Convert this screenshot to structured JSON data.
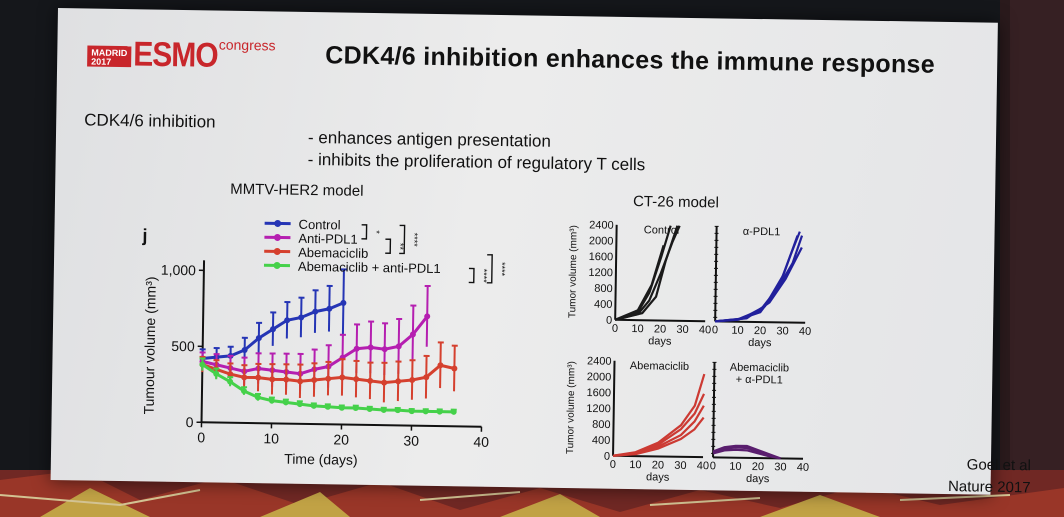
{
  "slide": {
    "logo": {
      "city_line1": "MADRID",
      "city_line2": "2017",
      "brand": "ESMO",
      "suffix": "congress"
    },
    "title": "CDK4/6 inhibition enhances the immune response",
    "lead": "CDK4/6 inhibition",
    "bullets": [
      "- enhances antigen presentation",
      "- inhibits the proliferation of regulatory T  cells"
    ],
    "model_left": "MMTV-HER2 model",
    "model_right": "CT-26 model",
    "citation_line1": "Goel et al",
    "citation_line2": "Nature 2017"
  },
  "chart_data": [
    {
      "type": "line",
      "panel_label": "j",
      "xlabel": "Time (days)",
      "ylabel": "Tumour volume (mm³)",
      "xlim": [
        0,
        40
      ],
      "ylim": [
        0,
        1000
      ],
      "xticks": [
        "0",
        "10",
        "20",
        "30",
        "40"
      ],
      "yticks": [
        {
          "v": 0,
          "label": "0"
        },
        {
          "v": 500,
          "label": "500"
        },
        {
          "v": 1000,
          "label": "1,000"
        }
      ],
      "significance": [
        "*",
        "**",
        "****",
        "****",
        "****"
      ],
      "series": [
        {
          "name": "Control",
          "color": "#2535b5",
          "x": [
            0,
            2,
            4,
            6,
            8,
            10,
            12,
            14,
            16,
            18,
            20
          ],
          "y": [
            420,
            430,
            440,
            480,
            560,
            620,
            680,
            700,
            740,
            760,
            800
          ],
          "err": [
            60,
            60,
            60,
            80,
            100,
            110,
            120,
            130,
            140,
            150,
            220
          ]
        },
        {
          "name": "Anti-PDL1",
          "color": "#b51fb0",
          "x": [
            0,
            2,
            4,
            6,
            8,
            10,
            12,
            14,
            16,
            18,
            20,
            22,
            24,
            26,
            28,
            30,
            32
          ],
          "y": [
            400,
            380,
            360,
            340,
            360,
            350,
            340,
            330,
            360,
            380,
            440,
            500,
            510,
            500,
            520,
            600,
            720
          ],
          "err": [
            60,
            70,
            80,
            90,
            100,
            110,
            120,
            130,
            130,
            140,
            150,
            160,
            170,
            170,
            180,
            190,
            200
          ]
        },
        {
          "name": "Abemaciclib",
          "color": "#d5402e",
          "x": [
            0,
            2,
            4,
            6,
            8,
            10,
            12,
            14,
            16,
            18,
            20,
            22,
            24,
            26,
            28,
            30,
            32,
            34,
            36
          ],
          "y": [
            380,
            350,
            320,
            300,
            300,
            290,
            290,
            280,
            290,
            300,
            310,
            300,
            290,
            280,
            290,
            300,
            320,
            400,
            380
          ],
          "err": [
            50,
            60,
            70,
            80,
            90,
            100,
            100,
            110,
            110,
            110,
            120,
            120,
            120,
            130,
            130,
            130,
            140,
            150,
            150
          ]
        },
        {
          "name": "Abemaciclib + anti-PDL1",
          "color": "#45d14a",
          "x": [
            0,
            2,
            4,
            6,
            8,
            10,
            12,
            14,
            16,
            18,
            20,
            22,
            24,
            26,
            28,
            30,
            32,
            34,
            36
          ],
          "y": [
            380,
            320,
            270,
            210,
            170,
            150,
            140,
            130,
            120,
            115,
            110,
            110,
            105,
            100,
            100,
            95,
            95,
            95,
            95
          ],
          "err": [
            40,
            35,
            30,
            25,
            22,
            20,
            18,
            18,
            16,
            16,
            15,
            15,
            14,
            14,
            14,
            14,
            14,
            14,
            14
          ]
        }
      ]
    },
    {
      "type": "line",
      "panels": [
        {
          "title": "Control",
          "color": "#1a1a1a",
          "lines": [
            {
              "x": [
                0,
                10,
                15,
                20,
                25,
                28
              ],
              "y": [
                0,
                150,
                500,
                1200,
                2000,
                2400
              ]
            },
            {
              "x": [
                0,
                10,
                15,
                20,
                24
              ],
              "y": [
                0,
                200,
                700,
                1600,
                2400
              ]
            },
            {
              "x": [
                0,
                12,
                18,
                22,
                27
              ],
              "y": [
                0,
                180,
                600,
                1500,
                2400
              ]
            },
            {
              "x": [
                0,
                10,
                16,
                21
              ],
              "y": [
                0,
                250,
                900,
                1900
              ]
            }
          ]
        },
        {
          "title": "α-PDL1",
          "color": "#22209c",
          "lines": [
            {
              "x": [
                0,
                10,
                20,
                28,
                33,
                37
              ],
              "y": [
                0,
                60,
                300,
                900,
                1700,
                2300
              ]
            },
            {
              "x": [
                0,
                12,
                22,
                30,
                36
              ],
              "y": [
                0,
                80,
                400,
                1200,
                2200
              ]
            },
            {
              "x": [
                0,
                10,
                20,
                27,
                34,
                38
              ],
              "y": [
                0,
                50,
                250,
                800,
                1500,
                2200
              ]
            },
            {
              "x": [
                0,
                14,
                24,
                31,
                38
              ],
              "y": [
                0,
                90,
                500,
                1100,
                1900
              ]
            }
          ]
        },
        {
          "title": "Abemaciclib",
          "color": "#cc3a33",
          "lines": [
            {
              "x": [
                0,
                10,
                20,
                30,
                36,
                40
              ],
              "y": [
                0,
                100,
                350,
                800,
                1300,
                2100
              ]
            },
            {
              "x": [
                0,
                10,
                20,
                30,
                36,
                40
              ],
              "y": [
                0,
                80,
                300,
                700,
                1100,
                1600
              ]
            },
            {
              "x": [
                0,
                10,
                20,
                30,
                36,
                40
              ],
              "y": [
                0,
                60,
                250,
                550,
                900,
                1300
              ]
            },
            {
              "x": [
                0,
                10,
                20,
                30,
                36,
                40
              ],
              "y": [
                0,
                50,
                200,
                450,
                700,
                1000
              ]
            }
          ]
        },
        {
          "title": "Abemaciclib + α-PDL1",
          "color": "#5a1e6e",
          "lines": [
            {
              "x": [
                0,
                5,
                10,
                15,
                20,
                25,
                30
              ],
              "y": [
                150,
                260,
                300,
                300,
                200,
                100,
                0
              ]
            },
            {
              "x": [
                0,
                5,
                10,
                15,
                20,
                25,
                30
              ],
              "y": [
                120,
                220,
                260,
                250,
                160,
                80,
                0
              ]
            },
            {
              "x": [
                0,
                5,
                10,
                15,
                20,
                25,
                30
              ],
              "y": [
                100,
                180,
                200,
                190,
                120,
                50,
                0
              ]
            }
          ]
        }
      ],
      "ylabel": "Tumor volume (mm³)",
      "xlabel": "days",
      "xlim": [
        0,
        40
      ],
      "ylim": [
        0,
        2400
      ],
      "xticks": [
        "0",
        "10",
        "20",
        "30",
        "40"
      ],
      "yticks": [
        "0",
        "400",
        "800",
        "1200",
        "1600",
        "2000",
        "2400"
      ]
    }
  ]
}
